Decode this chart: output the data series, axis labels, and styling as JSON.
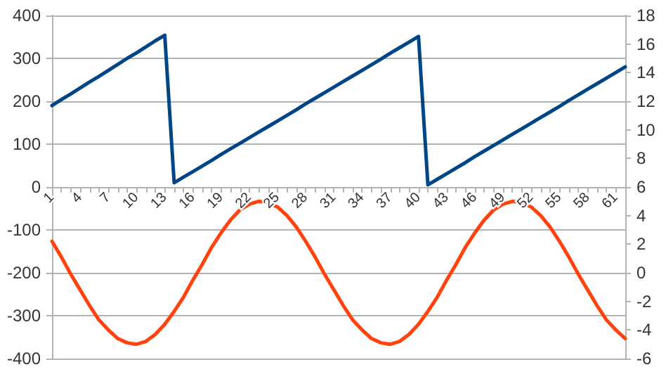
{
  "chart_data": {
    "type": "line",
    "categories": [
      "1",
      null,
      null,
      "4",
      null,
      null,
      "7",
      null,
      null,
      "10",
      null,
      null,
      "13",
      null,
      null,
      "16",
      null,
      null,
      "19",
      null,
      null,
      "22",
      null,
      null,
      "25",
      null,
      null,
      "28",
      null,
      null,
      "31",
      null,
      null,
      "34",
      null,
      null,
      "37",
      null,
      null,
      "40",
      null,
      null,
      "43",
      null,
      null,
      "46",
      null,
      null,
      "49",
      null,
      null,
      "52",
      null,
      null,
      "55",
      null,
      null,
      "58",
      null,
      null,
      "61",
      null
    ],
    "series": [
      {
        "color": "#004586",
        "values": [
          190,
          204,
          217,
          231,
          245,
          258,
          272,
          286,
          300,
          313,
          327,
          341,
          354,
          10,
          23,
          36,
          49,
          62,
          76,
          89,
          102,
          115,
          128,
          141,
          154,
          167,
          180,
          194,
          207,
          220,
          233,
          246,
          259,
          272,
          285,
          298,
          312,
          325,
          338,
          351,
          5,
          18,
          31,
          44,
          57,
          71,
          84,
          97,
          110,
          123,
          136,
          149,
          162,
          175,
          188,
          202,
          215,
          228,
          241,
          254,
          267,
          280
        ]
      },
      {
        "color": "#ff420e",
        "axis": "y2",
        "values": [
          2.2,
          1.1,
          -0.1,
          -1.2,
          -2.3,
          -3.3,
          -4.0,
          -4.6,
          -4.9,
          -5.0,
          -4.8,
          -4.3,
          -3.6,
          -2.7,
          -1.7,
          -0.5,
          0.6,
          1.8,
          2.8,
          3.7,
          4.4,
          4.8,
          5.0,
          4.9,
          4.6,
          4.0,
          3.2,
          2.2,
          1.1,
          -0.1,
          -1.2,
          -2.3,
          -3.3,
          -4.0,
          -4.6,
          -4.9,
          -5.0,
          -4.8,
          -4.3,
          -3.6,
          -2.7,
          -1.7,
          -0.5,
          0.6,
          1.8,
          2.8,
          3.7,
          4.4,
          4.8,
          5.0,
          4.9,
          4.6,
          4.0,
          3.2,
          2.2,
          1.1,
          -0.1,
          -1.2,
          -2.3,
          -3.3,
          -4.0,
          -4.6
        ]
      }
    ],
    "ylim": [
      -400,
      400
    ],
    "yticks": [
      -400,
      -300,
      -200,
      -100,
      0,
      100,
      200,
      300,
      400
    ],
    "y2lim": [
      -6,
      18
    ],
    "y2ticks": [
      -6,
      -4,
      -2,
      0,
      2,
      4,
      6,
      8,
      10,
      12,
      14,
      16,
      18
    ],
    "grid": "y",
    "marker": "none",
    "line_style": "solid"
  }
}
